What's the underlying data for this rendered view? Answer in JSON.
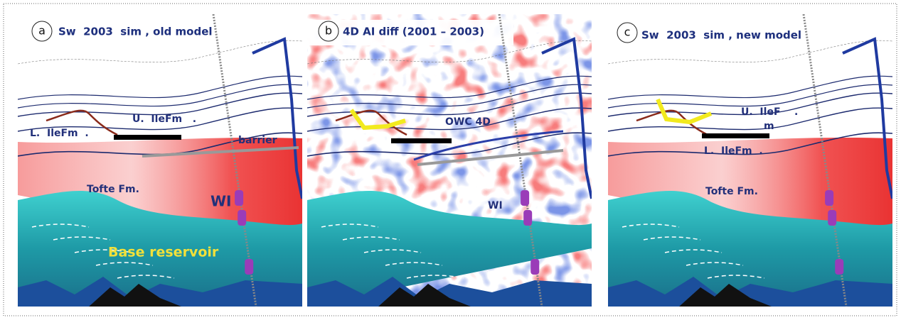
{
  "panels": [
    {
      "label": "a",
      "title": "Sw  2003  sim , old model",
      "annotations": [
        "L.  IleFm  .",
        "U.  IleFm   .",
        "barrier",
        "Tofte Fm.",
        "WI",
        "Base reservoir"
      ]
    },
    {
      "label": "b",
      "title": "4D AI diff (2001 – 2003)",
      "annotations": [
        "OWC 4D",
        "WI"
      ]
    },
    {
      "label": "c",
      "title": "Sw  2003  sim , new model",
      "annotations": [
        "U.  IleF    .",
        "m",
        "L.  IleFm  .",
        "Tofte Fm."
      ]
    }
  ]
}
